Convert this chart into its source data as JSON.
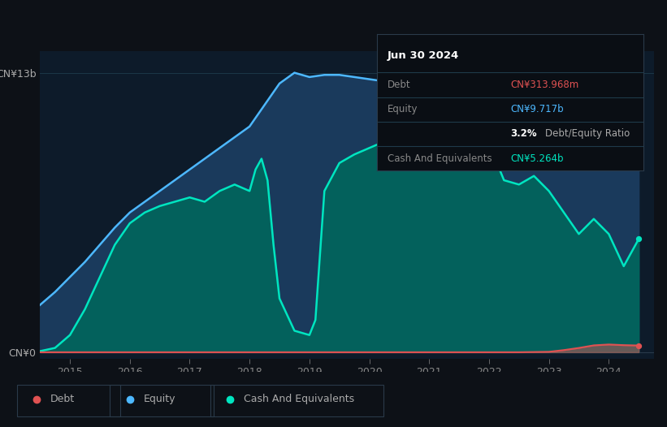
{
  "bg_color": "#0d1117",
  "plot_bg_color": "#0d1b2a",
  "grid_color": "#1e3a4a",
  "ylabel_top": "CN¥13b",
  "ylabel_bot": "CN¥0",
  "x_ticks": [
    2015,
    2016,
    2017,
    2018,
    2019,
    2020,
    2021,
    2022,
    2023,
    2024
  ],
  "xmin": 2014.5,
  "xmax": 2024.75,
  "ymin": -0.3,
  "ymax": 14.0,
  "equity": {
    "x": [
      2014.5,
      2014.75,
      2015.0,
      2015.25,
      2015.5,
      2015.75,
      2016.0,
      2016.25,
      2016.5,
      2016.75,
      2017.0,
      2017.25,
      2017.5,
      2017.75,
      2018.0,
      2018.25,
      2018.5,
      2018.75,
      2019.0,
      2019.25,
      2019.5,
      2019.75,
      2020.0,
      2020.25,
      2020.5,
      2020.75,
      2021.0,
      2021.25,
      2021.5,
      2021.75,
      2022.0,
      2022.25,
      2022.5,
      2022.75,
      2023.0,
      2023.25,
      2023.5,
      2023.75,
      2024.0,
      2024.25,
      2024.5
    ],
    "y": [
      2.2,
      2.8,
      3.5,
      4.2,
      5.0,
      5.8,
      6.5,
      7.0,
      7.5,
      8.0,
      8.5,
      9.0,
      9.5,
      10.0,
      10.5,
      11.5,
      12.5,
      13.0,
      12.8,
      12.9,
      12.9,
      12.8,
      12.7,
      12.6,
      12.5,
      12.6,
      12.5,
      12.4,
      12.5,
      12.6,
      13.0,
      12.7,
      12.5,
      12.3,
      12.0,
      11.5,
      11.8,
      12.0,
      12.3,
      12.8,
      9.717
    ],
    "line_color": "#4db8ff",
    "fill_color": "#1a3a5c"
  },
  "cash": {
    "x": [
      2014.5,
      2014.75,
      2015.0,
      2015.25,
      2015.5,
      2015.75,
      2016.0,
      2016.25,
      2016.5,
      2016.75,
      2017.0,
      2017.25,
      2017.5,
      2017.75,
      2018.0,
      2018.1,
      2018.2,
      2018.3,
      2018.4,
      2018.5,
      2018.75,
      2019.0,
      2019.1,
      2019.25,
      2019.5,
      2019.75,
      2020.0,
      2020.25,
      2020.5,
      2020.75,
      2021.0,
      2021.25,
      2021.5,
      2021.75,
      2022.0,
      2022.25,
      2022.5,
      2022.75,
      2023.0,
      2023.25,
      2023.5,
      2023.75,
      2024.0,
      2024.25,
      2024.5
    ],
    "y": [
      0.05,
      0.2,
      0.8,
      2.0,
      3.5,
      5.0,
      6.0,
      6.5,
      6.8,
      7.0,
      7.2,
      7.0,
      7.5,
      7.8,
      7.5,
      8.5,
      9.0,
      8.0,
      5.0,
      2.5,
      1.0,
      0.8,
      1.5,
      7.5,
      8.8,
      9.2,
      9.5,
      9.8,
      9.5,
      9.3,
      9.0,
      9.8,
      9.6,
      9.4,
      9.7,
      8.0,
      7.8,
      8.2,
      7.5,
      6.5,
      5.5,
      6.2,
      5.5,
      4.0,
      5.264
    ],
    "line_color": "#00e5c0",
    "fill_color": "#00695c"
  },
  "debt": {
    "x": [
      2014.5,
      2015.0,
      2016.0,
      2017.0,
      2018.0,
      2019.0,
      2020.0,
      2021.0,
      2021.5,
      2022.0,
      2022.5,
      2023.0,
      2023.25,
      2023.5,
      2023.75,
      2024.0,
      2024.25,
      2024.5
    ],
    "y": [
      0.0,
      0.0,
      0.0,
      0.0,
      0.0,
      0.0,
      0.0,
      0.0,
      0.0,
      0.0,
      0.0,
      0.02,
      0.1,
      0.2,
      0.32,
      0.36,
      0.33,
      0.313968
    ],
    "line_color": "#e05252",
    "fill_color": "#e05252"
  },
  "info_box": {
    "date": "Jun 30 2024",
    "rows": [
      {
        "label": "Debt",
        "value": "CN¥313.968m",
        "value_color": "#e05252"
      },
      {
        "label": "Equity",
        "value": "CN¥9.717b",
        "value_color": "#4db8ff"
      },
      {
        "label": "",
        "value": "3.2% Debt/Equity Ratio",
        "value_color": "#cccccc",
        "bold_prefix": "3.2%"
      },
      {
        "label": "Cash And Equivalents",
        "value": "CN¥5.264b",
        "value_color": "#00e5c0"
      }
    ]
  },
  "legend_items": [
    {
      "label": "Debt",
      "color": "#e05252"
    },
    {
      "label": "Equity",
      "color": "#4db8ff"
    },
    {
      "label": "Cash And Equivalents",
      "color": "#00e5c0"
    }
  ]
}
